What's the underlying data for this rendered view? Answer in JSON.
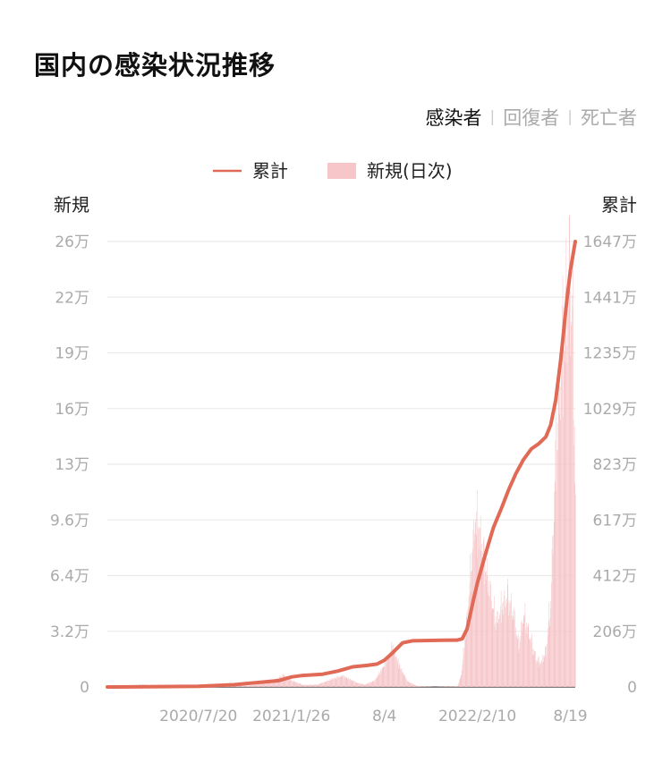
{
  "header": {
    "title": "国内の感染状況推移"
  },
  "tabs": [
    {
      "label": "感染者",
      "active": true
    },
    {
      "label": "回復者",
      "active": false
    },
    {
      "label": "死亡者",
      "active": false
    }
  ],
  "colors": {
    "cumulative_line": "#e06a55",
    "daily_bars": "#f6c6c9",
    "grid": "#ebebeb"
  },
  "chart_data": {
    "type": "bar+line",
    "legend": {
      "cumulative": "累計",
      "daily": "新規(日次)",
      "placement": "top-center"
    },
    "ylabel_left": "新規",
    "ylabel_right": "累計",
    "yticks_left": [
      "0",
      "3.2万",
      "6.4万",
      "9.6万",
      "13万",
      "16万",
      "19万",
      "22万",
      "26万"
    ],
    "yticks_right": [
      "0",
      "206万",
      "412万",
      "617万",
      "823万",
      "1029万",
      "1235万",
      "1441万",
      "1647万"
    ],
    "ylim_left": [
      0,
      260000
    ],
    "ylim_right": [
      0,
      16470000
    ],
    "xticks": [
      "2020/7/20",
      "2021/1/26",
      "8/4",
      "2022/2/10",
      "8/19"
    ],
    "x_range": [
      "2020-01-16",
      "2022-08-29"
    ],
    "grid": true,
    "series": [
      {
        "name": "累計",
        "kind": "line",
        "axis": "right",
        "points": [
          [
            "2020-01-16",
            0
          ],
          [
            "2020-04-30",
            14000
          ],
          [
            "2020-07-20",
            26000
          ],
          [
            "2020-09-30",
            83000
          ],
          [
            "2020-12-31",
            235000
          ],
          [
            "2021-01-26",
            370000
          ],
          [
            "2021-02-15",
            420000
          ],
          [
            "2021-03-31",
            474000
          ],
          [
            "2021-05-01",
            590000
          ],
          [
            "2021-05-31",
            745000
          ],
          [
            "2021-06-30",
            798000
          ],
          [
            "2021-07-20",
            845000
          ],
          [
            "2021-08-04",
            990000
          ],
          [
            "2021-08-20",
            1250000
          ],
          [
            "2021-09-10",
            1630000
          ],
          [
            "2021-09-30",
            1705000
          ],
          [
            "2021-11-30",
            1727000
          ],
          [
            "2021-12-31",
            1733000
          ],
          [
            "2022-01-10",
            1780000
          ],
          [
            "2022-01-20",
            2150000
          ],
          [
            "2022-02-01",
            3150000
          ],
          [
            "2022-02-10",
            3850000
          ],
          [
            "2022-02-28",
            5000000
          ],
          [
            "2022-03-15",
            5900000
          ],
          [
            "2022-03-31",
            6600000
          ],
          [
            "2022-04-15",
            7300000
          ],
          [
            "2022-04-30",
            7900000
          ],
          [
            "2022-05-15",
            8400000
          ],
          [
            "2022-05-31",
            8800000
          ],
          [
            "2022-06-15",
            8990000
          ],
          [
            "2022-06-30",
            9250000
          ],
          [
            "2022-07-10",
            9700000
          ],
          [
            "2022-07-20",
            10600000
          ],
          [
            "2022-07-31",
            12200000
          ],
          [
            "2022-08-10",
            14000000
          ],
          [
            "2022-08-19",
            15400000
          ],
          [
            "2022-08-29",
            16470000
          ]
        ]
      },
      {
        "name": "新規(日次)",
        "kind": "bar",
        "axis": "left",
        "points": [
          [
            "2020-01-16",
            0
          ],
          [
            "2020-03-31",
            1500
          ],
          [
            "2020-04-12",
            700
          ],
          [
            "2020-05-31",
            100
          ],
          [
            "2020-07-20",
            700
          ],
          [
            "2020-08-05",
            1500
          ],
          [
            "2020-09-30",
            500
          ],
          [
            "2020-11-01",
            800
          ],
          [
            "2020-12-15",
            3000
          ],
          [
            "2021-01-10",
            7500
          ],
          [
            "2021-01-26",
            4000
          ],
          [
            "2021-02-20",
            1200
          ],
          [
            "2021-03-20",
            1500
          ],
          [
            "2021-04-20",
            5000
          ],
          [
            "2021-05-10",
            7000
          ],
          [
            "2021-06-10",
            2500
          ],
          [
            "2021-06-25",
            1500
          ],
          [
            "2021-07-15",
            4000
          ],
          [
            "2021-08-04",
            14000
          ],
          [
            "2021-08-20",
            25000
          ],
          [
            "2021-09-05",
            12000
          ],
          [
            "2021-09-20",
            3500
          ],
          [
            "2021-10-10",
            500
          ],
          [
            "2021-11-15",
            150
          ],
          [
            "2021-12-31",
            500
          ],
          [
            "2022-01-08",
            8000
          ],
          [
            "2022-01-20",
            45000
          ],
          [
            "2022-02-01",
            90000
          ],
          [
            "2022-02-05",
            105000
          ],
          [
            "2022-02-15",
            95000
          ],
          [
            "2022-02-28",
            70000
          ],
          [
            "2022-03-10",
            55000
          ],
          [
            "2022-03-20",
            40000
          ],
          [
            "2022-04-01",
            50000
          ],
          [
            "2022-04-12",
            57000
          ],
          [
            "2022-04-25",
            45000
          ],
          [
            "2022-05-05",
            25000
          ],
          [
            "2022-05-15",
            45000
          ],
          [
            "2022-05-31",
            28000
          ],
          [
            "2022-06-10",
            17000
          ],
          [
            "2022-06-20",
            15000
          ],
          [
            "2022-06-30",
            23000
          ],
          [
            "2022-07-10",
            55000
          ],
          [
            "2022-07-20",
            150000
          ],
          [
            "2022-07-31",
            200000
          ],
          [
            "2022-08-10",
            235000
          ],
          [
            "2022-08-19",
            255000
          ],
          [
            "2022-08-24",
            215000
          ],
          [
            "2022-08-29",
            120000
          ]
        ]
      }
    ]
  }
}
